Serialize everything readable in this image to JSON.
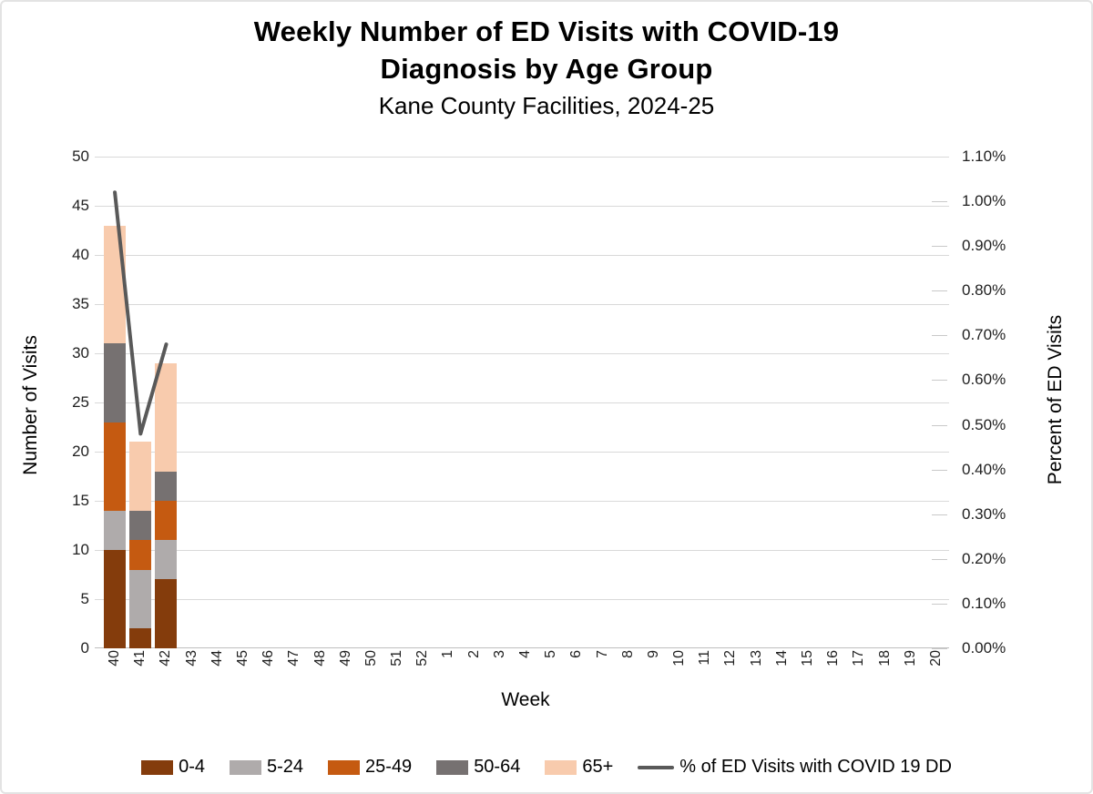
{
  "chart_data": {
    "type": "bar",
    "subtype": "stacked-bars-with-line-overlay",
    "title_line1": "Weekly Number of ED Visits with COVID-19",
    "title_line2": "Diagnosis by Age Group",
    "subtitle": "Kane County Facilities, 2024-25",
    "xlabel": "Week",
    "ylabel_left": "Number of Visits",
    "ylabel_right": "Percent of ED Visits",
    "categories": [
      "40",
      "41",
      "42",
      "43",
      "44",
      "45",
      "46",
      "47",
      "48",
      "49",
      "50",
      "51",
      "52",
      "1",
      "2",
      "3",
      "4",
      "5",
      "6",
      "7",
      "8",
      "9",
      "10",
      "11",
      "12",
      "13",
      "14",
      "15",
      "16",
      "17",
      "18",
      "19",
      "20"
    ],
    "weeks_with_data": [
      "40",
      "41",
      "42"
    ],
    "bar_series": [
      {
        "name": "0-4",
        "color": "#843C0C",
        "values": [
          10,
          2,
          7
        ]
      },
      {
        "name": "5-24",
        "color": "#AFABAB",
        "values": [
          4,
          6,
          4
        ]
      },
      {
        "name": "25-49",
        "color": "#C55A11",
        "values": [
          9,
          3,
          4
        ]
      },
      {
        "name": "50-64",
        "color": "#767171",
        "values": [
          8,
          3,
          3
        ]
      },
      {
        "name": "65+",
        "color": "#F8CBAD",
        "values": [
          12,
          7,
          11
        ]
      }
    ],
    "stacked_totals": [
      43,
      21,
      29
    ],
    "line_series": {
      "name": "% of ED Visits with COVID 19 DD",
      "color": "#595959",
      "values_percent": [
        1.02,
        0.48,
        0.68
      ]
    },
    "left_axis": {
      "min": 0,
      "max": 50,
      "step": 5,
      "tick_labels": [
        "0",
        "5",
        "10",
        "15",
        "20",
        "25",
        "30",
        "35",
        "40",
        "45",
        "50"
      ]
    },
    "right_axis": {
      "min_percent": 0.0,
      "max_percent": 1.1,
      "step_percent": 0.1,
      "tick_labels": [
        "1.10%",
        "1.00%",
        "0.90%",
        "0.80%",
        "0.70%",
        "0.60%",
        "0.50%",
        "0.40%",
        "0.30%",
        "0.20%",
        "0.10%",
        "0.00%"
      ]
    },
    "grid": true,
    "legend_position": "bottom",
    "colors": {
      "gridline": "#D9D9D9",
      "axis_line": "#BFBFBF",
      "tick_text": "#1F1F1F",
      "title_text": "#000000",
      "frame_border": "#E3E3E3",
      "background": "#FFFFFF"
    }
  }
}
